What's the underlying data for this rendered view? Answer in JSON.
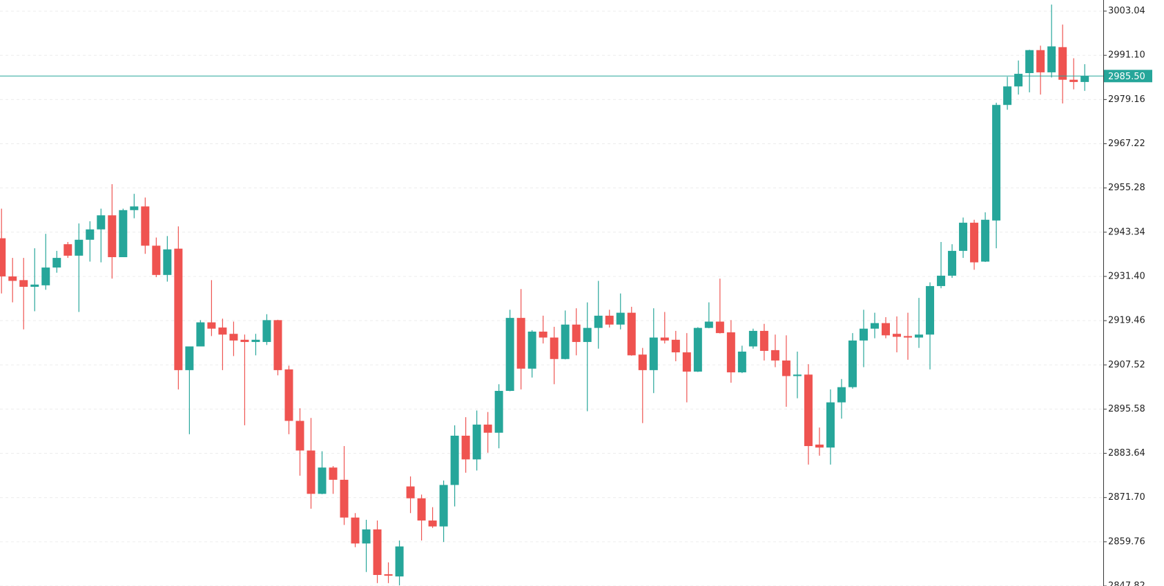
{
  "chart_data": {
    "type": "candlestick",
    "up_color": "#26a69a",
    "down_color": "#ef5350",
    "price_line_color": "#26a69a",
    "grid": true,
    "ylim": [
      2847.82,
      3006.03
    ],
    "yticks": [
      3003.04,
      {
        "value": 2991.1,
        "label": "2991.10"
      },
      2979.16,
      2967.22,
      2955.28,
      2943.34,
      {
        "value": 2931.4,
        "label": "2931.40"
      },
      2919.46,
      2907.52,
      2895.58,
      2883.64,
      {
        "value": 2871.7,
        "label": "2871.70"
      },
      2859.76,
      2847.82
    ],
    "current_price": {
      "value": 2985.5,
      "label": "2985.50"
    },
    "open": [
      2941.7,
      2931.4,
      2930.4,
      2928.6,
      2929.0,
      2933.8,
      2940.1,
      2937.0,
      2941.3,
      2944.1,
      2947.9,
      2936.6,
      2949.3,
      2950.3,
      2939.7,
      2931.8,
      2938.9,
      2906.1,
      2912.5,
      2919.0,
      2917.6,
      2915.9,
      2914.3,
      2913.7,
      2913.7,
      2919.6,
      2906.3,
      2892.4,
      2884.4,
      2872.7,
      2879.8,
      2876.5,
      2866.3,
      2859.3,
      2863.1,
      2851.0,
      2850.4,
      2874.7,
      2871.5,
      2865.5,
      2863.9,
      2875.1,
      2888.4,
      2882.0,
      2891.4,
      2889.2,
      2900.5,
      2920.2,
      2906.5,
      2916.5,
      2914.9,
      2909.1,
      2918.4,
      2913.7,
      2917.5,
      2920.8,
      2918.4,
      2921.6,
      2910.3,
      2906.1,
      2914.9,
      2914.3,
      2910.9,
      2905.7,
      2917.5,
      2919.2,
      2916.3,
      2905.5,
      2912.5,
      2916.7,
      2911.5,
      2908.7,
      2904.5,
      2904.9,
      2886.0,
      2885.2,
      2897.4,
      2901.5,
      2914.1,
      2917.3,
      2918.8,
      2915.9,
      2915.3,
      2914.9,
      2915.7,
      2928.8,
      2931.6,
      2938.3,
      2945.9,
      2935.4,
      2946.5,
      2977.7,
      2982.7,
      2986.3,
      2992.5,
      2986.5,
      2993.3,
      2984.5,
      2983.9
    ],
    "high": [
      2949.7,
      2936.4,
      2936.4,
      2939.0,
      2942.9,
      2938.3,
      2940.7,
      2945.7,
      2946.3,
      2949.7,
      2956.3,
      2949.7,
      2953.7,
      2952.7,
      2941.9,
      2942.3,
      2944.9,
      2912.5,
      2919.6,
      2930.4,
      2920.0,
      2919.2,
      2915.7,
      2915.9,
      2921.2,
      2919.7,
      2907.3,
      2895.8,
      2893.2,
      2884.2,
      2880.2,
      2885.6,
      2867.5,
      2865.7,
      2865.5,
      2854.2,
      2860.1,
      2877.4,
      2872.5,
      2869.1,
      2876.3,
      2891.2,
      2893.4,
      2895.2,
      2894.8,
      2902.3,
      2922.4,
      2928.0,
      2916.9,
      2920.8,
      2917.8,
      2922.2,
      2922.8,
      2924.4,
      2930.2,
      2922.4,
      2926.8,
      2923.2,
      2912.1,
      2922.8,
      2921.8,
      2916.7,
      2916.1,
      2917.7,
      2924.4,
      2930.8,
      2919.6,
      2912.7,
      2917.3,
      2918.6,
      2915.7,
      2915.5,
      2911.1,
      2907.7,
      2890.6,
      2900.9,
      2903.7,
      2916.1,
      2922.4,
      2921.6,
      2920.4,
      2920.6,
      2921.6,
      2925.6,
      2929.8,
      2940.7,
      2940.1,
      2947.3,
      2946.7,
      2948.7,
      2978.3,
      2985.3,
      2989.7,
      2992.6,
      2993.7,
      3004.8,
      2999.4,
      2990.3,
      2988.7
    ],
    "low": [
      2926.8,
      2924.4,
      2917.1,
      2922.0,
      2927.8,
      2932.4,
      2936.4,
      2921.8,
      2935.4,
      2935.2,
      2930.8,
      2936.6,
      2947.1,
      2937.5,
      2931.2,
      2930.0,
      2900.9,
      2888.8,
      2912.5,
      2915.3,
      2906.1,
      2909.9,
      2891.2,
      2910.1,
      2912.9,
      2904.7,
      2888.8,
      2877.6,
      2868.7,
      2872.6,
      2872.7,
      2864.3,
      2858.3,
      2851.6,
      2848.6,
      2848.6,
      2848.0,
      2867.5,
      2860.1,
      2863.5,
      2859.7,
      2869.3,
      2878.4,
      2879.0,
      2883.8,
      2885.0,
      2900.4,
      2900.9,
      2904.1,
      2913.3,
      2902.3,
      2909.0,
      2910.1,
      2895.0,
      2911.9,
      2917.6,
      2917.1,
      2910.0,
      2891.8,
      2899.9,
      2913.3,
      2908.5,
      2897.4,
      2905.6,
      2917.4,
      2916.0,
      2902.7,
      2905.3,
      2911.9,
      2908.7,
      2906.9,
      2896.2,
      2898.5,
      2880.6,
      2883.0,
      2880.6,
      2893.0,
      2901.1,
      2906.9,
      2914.7,
      2914.7,
      2910.9,
      2908.9,
      2912.1,
      2906.3,
      2928.2,
      2931.0,
      2936.4,
      2933.2,
      2935.3,
      2939.0,
      2976.4,
      2980.5,
      2981.1,
      2980.5,
      2985.1,
      2978.1,
      2981.9,
      2981.5
    ],
    "close": [
      2931.4,
      2930.2,
      2928.6,
      2929.2,
      2933.8,
      2936.4,
      2937.0,
      2941.3,
      2944.1,
      2947.9,
      2936.6,
      2949.3,
      2950.3,
      2939.7,
      2931.8,
      2938.7,
      2906.1,
      2912.5,
      2919.0,
      2917.3,
      2915.7,
      2914.1,
      2913.7,
      2914.3,
      2919.6,
      2906.1,
      2892.4,
      2884.4,
      2872.7,
      2879.8,
      2876.5,
      2866.3,
      2859.3,
      2863.1,
      2850.8,
      2850.6,
      2858.5,
      2871.5,
      2865.5,
      2863.9,
      2875.1,
      2888.4,
      2882.0,
      2891.4,
      2889.2,
      2900.5,
      2920.2,
      2906.5,
      2916.5,
      2914.9,
      2909.1,
      2918.4,
      2913.7,
      2917.5,
      2920.8,
      2918.4,
      2921.6,
      2910.1,
      2906.1,
      2914.9,
      2914.1,
      2910.9,
      2905.7,
      2917.5,
      2919.2,
      2916.1,
      2905.5,
      2911.1,
      2916.7,
      2911.3,
      2908.7,
      2904.5,
      2904.9,
      2885.6,
      2885.2,
      2897.4,
      2901.5,
      2914.1,
      2917.3,
      2918.8,
      2915.5,
      2915.1,
      2914.9,
      2915.7,
      2928.8,
      2931.6,
      2938.3,
      2945.9,
      2935.2,
      2946.7,
      2977.7,
      2982.7,
      2986.1,
      2992.5,
      2986.5,
      2993.5,
      2984.5,
      2983.9,
      2985.5
    ]
  }
}
